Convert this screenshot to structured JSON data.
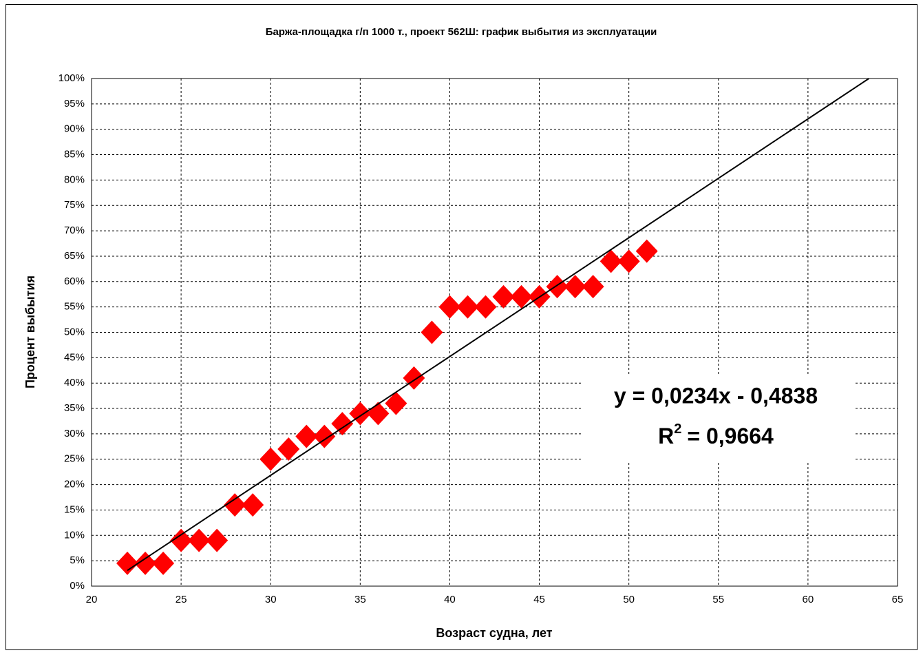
{
  "chart_data": {
    "type": "scatter",
    "title": "Баржа-площадка г/п 1000 т., проект 562Ш: график выбытия из эксплуатации",
    "x_label": "Возраст судна, лет",
    "y_label": "Процент выбытия",
    "equation": "y = 0,0234x - 0,4838",
    "r2_base": "R",
    "r2_exp": "2",
    "r2_value": "= 0,9664",
    "grid": true,
    "xlim": [
      20,
      65
    ],
    "xticks": [
      20,
      25,
      30,
      35,
      40,
      45,
      50,
      55,
      60,
      65
    ],
    "ylim": [
      0,
      100
    ],
    "yticks": [
      {
        "value": 0,
        "label": "0%"
      },
      {
        "value": 5,
        "label": "5%"
      },
      {
        "value": 10,
        "label": "10%"
      },
      {
        "value": 15,
        "label": "15%"
      },
      {
        "value": 20,
        "label": "20%"
      },
      {
        "value": 25,
        "label": "25%"
      },
      {
        "value": 30,
        "label": "30%"
      },
      {
        "value": 35,
        "label": "35%"
      },
      {
        "value": 40,
        "label": "40%"
      },
      {
        "value": 45,
        "label": "45%"
      },
      {
        "value": 50,
        "label": "50%"
      },
      {
        "value": 55,
        "label": "55%"
      },
      {
        "value": 60,
        "label": "60%"
      },
      {
        "value": 65,
        "label": "65%"
      },
      {
        "value": 70,
        "label": "70%"
      },
      {
        "value": 75,
        "label": "75%"
      },
      {
        "value": 80,
        "label": "80%"
      },
      {
        "value": 85,
        "label": "85%"
      },
      {
        "value": 90,
        "label": "90%"
      },
      {
        "value": 95,
        "label": "95%"
      },
      {
        "value": 100,
        "label": "100%"
      }
    ],
    "series": [
      {
        "color": "#ff0000",
        "x": [
          22,
          23,
          24,
          25,
          26,
          27,
          28,
          29,
          30,
          31,
          32,
          33,
          34,
          35,
          36,
          37,
          38,
          39,
          40,
          41,
          42,
          43,
          44,
          45,
          46,
          47,
          48,
          49,
          50,
          51
        ],
        "values": [
          4.5,
          4.5,
          4.5,
          9,
          9,
          9,
          16,
          16,
          25,
          27,
          29.5,
          29.5,
          32,
          34,
          34,
          36,
          41,
          50,
          55,
          55,
          55,
          57,
          57,
          57,
          59,
          59,
          59,
          64,
          64,
          66
        ]
      },
      {
        "color": "#000000",
        "line": true,
        "x": [
          22,
          63.4
        ],
        "values": [
          3.1,
          100
        ]
      }
    ]
  }
}
